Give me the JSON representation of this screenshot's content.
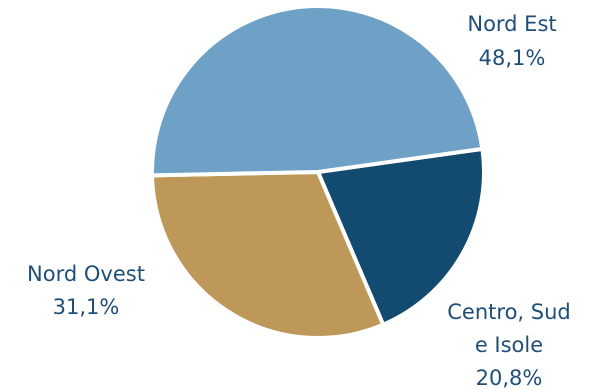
{
  "chart_data": {
    "type": "pie",
    "title": "",
    "slices": [
      {
        "label": "Nord Est",
        "value": 48.1,
        "value_label": "48,1%",
        "color": "#6fa1c7"
      },
      {
        "label": "Centro, Sud e Isole",
        "label_lines": [
          "Centro, Sud",
          "e Isole"
        ],
        "value": 20.8,
        "value_label": "20,8%",
        "color": "#134a6f"
      },
      {
        "label": "Nord Ovest",
        "value": 31.1,
        "value_label": "31,1%",
        "color": "#be9858"
      }
    ],
    "legend": "none",
    "label_color": "#1f4e79"
  }
}
